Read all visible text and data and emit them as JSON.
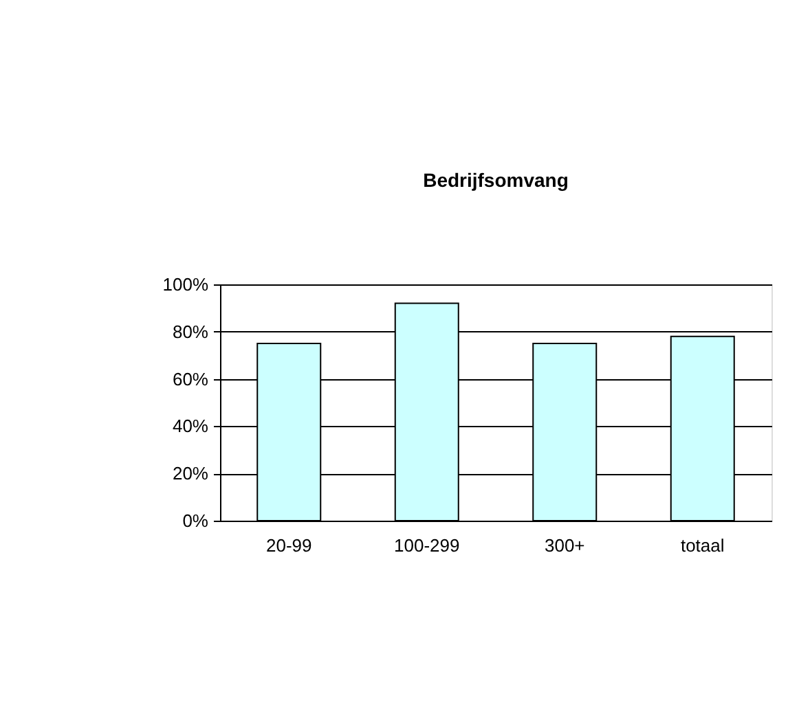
{
  "chart_data": {
    "type": "bar",
    "title": "Bedrijfsomvang",
    "categories": [
      "20-99",
      "100-299",
      "300+",
      "totaal"
    ],
    "values": [
      75,
      92,
      75,
      78
    ],
    "color": "#ccffff",
    "ylim": [
      0,
      100
    ],
    "yticks": [
      {
        "value": 0,
        "label": "0%"
      },
      {
        "value": 20,
        "label": "20%"
      },
      {
        "value": 40,
        "label": "40%"
      },
      {
        "value": 60,
        "label": "60%"
      },
      {
        "value": 80,
        "label": "80%"
      },
      {
        "value": 100,
        "label": "100%"
      }
    ],
    "grid": "y"
  }
}
